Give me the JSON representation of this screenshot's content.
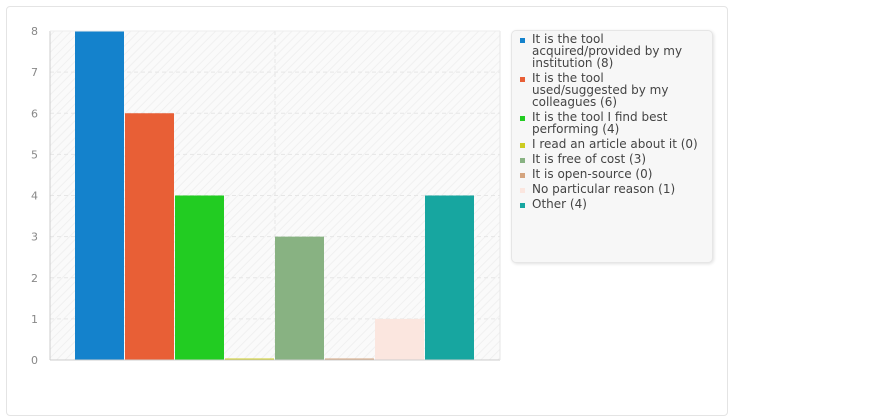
{
  "chart_data": {
    "type": "bar",
    "title": "",
    "xlabel": "",
    "ylabel": "",
    "ylim": [
      0,
      8
    ],
    "yticks": [
      "0",
      "1",
      "2",
      "3",
      "4",
      "5",
      "6",
      "7",
      "8"
    ],
    "grid": true,
    "legend_position": "right",
    "categories": [
      "It is the tool acquired/provided by my institution (8)",
      "It is the tool used/suggested by my colleagues (6)",
      "It is the tool I find best performing (4)",
      "I read an article about it (0)",
      "It is free of cost (3)",
      "It is open-source (0)",
      "No particular reason (1)",
      "Other (4)"
    ],
    "values": [
      8,
      6,
      4,
      0,
      3,
      0,
      1,
      4
    ],
    "colors": [
      "#1482cc",
      "#e85f36",
      "#22cc22",
      "#cccc22",
      "#88b282",
      "#d4a47e",
      "#fbe6df",
      "#17a6a0"
    ]
  }
}
